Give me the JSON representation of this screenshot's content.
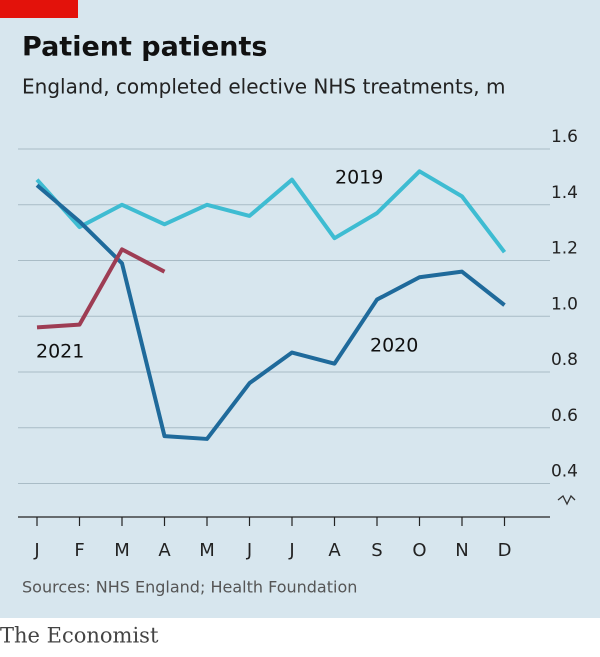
{
  "chart_data": {
    "type": "line",
    "title": "Patient patients",
    "subtitle": "England, completed elective NHS treatments, m",
    "source": "Sources: NHS England; Health Foundation",
    "brand": "The Economist",
    "categories": [
      "J",
      "F",
      "M",
      "A",
      "M",
      "J",
      "J",
      "A",
      "S",
      "O",
      "N",
      "D"
    ],
    "series": [
      {
        "name": "2019",
        "color": "#3ebcd2",
        "values": [
          1.49,
          1.32,
          1.4,
          1.33,
          1.4,
          1.36,
          1.49,
          1.28,
          1.37,
          1.52,
          1.43,
          1.23
        ]
      },
      {
        "name": "2020",
        "color": "#1f6a9b",
        "values": [
          1.47,
          1.34,
          1.19,
          0.57,
          0.56,
          0.76,
          0.87,
          0.83,
          1.06,
          1.14,
          1.16,
          1.04
        ]
      },
      {
        "name": "2021",
        "color": "#9e3d54",
        "values": [
          0.96,
          0.97,
          1.24,
          1.16,
          null,
          null,
          null,
          null,
          null,
          null,
          null,
          null
        ]
      }
    ],
    "ylim": [
      0.28,
      1.6
    ],
    "yticks": [
      0.4,
      0.6,
      0.8,
      {
        "value": 1,
        "label": "1.0"
      },
      1.2,
      1.4,
      1.6
    ],
    "grid": true
  }
}
